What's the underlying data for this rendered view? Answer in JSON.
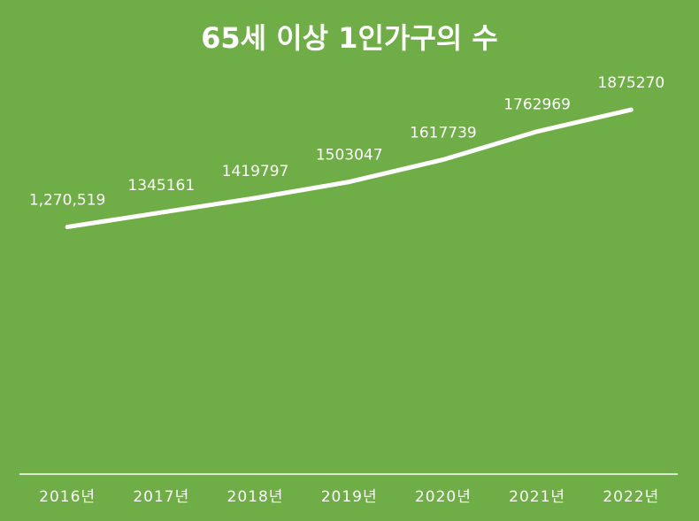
{
  "chart_data": {
    "type": "line",
    "title": "65세 이상 1인가구의 수",
    "categories": [
      "2016년",
      "2017년",
      "2018년",
      "2019년",
      "2020년",
      "2021년",
      "2022년"
    ],
    "values": [
      1270519,
      1345161,
      1419797,
      1503047,
      1617739,
      1762969,
      1875270
    ],
    "value_labels": [
      "1,270,519",
      "1345161",
      "1419797",
      "1503047",
      "1617739",
      "1762969",
      "1875270"
    ],
    "color": "#ffffff",
    "ylim": [
      0,
      2000000
    ]
  }
}
